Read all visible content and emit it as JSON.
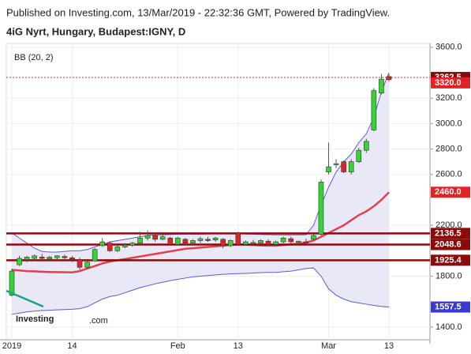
{
  "header": {
    "published": "Published on Investing.com, 13/Mar/2019 - 22:32:36 GMT, Powered by TradingView.",
    "symbol": "4iG Nyrt, Hungary, Budapest:IGNY, D"
  },
  "logo": {
    "brand": "Investing",
    "suffix": ".com"
  },
  "chart_data": {
    "type": "candlestick",
    "categories": [
      "2019",
      null,
      null,
      null,
      null,
      null,
      null,
      null,
      "14",
      null,
      null,
      null,
      null,
      null,
      null,
      null,
      null,
      null,
      null,
      null,
      null,
      null,
      "Feb",
      null,
      null,
      null,
      null,
      null,
      null,
      null,
      "13",
      null,
      null,
      null,
      null,
      null,
      null,
      null,
      null,
      null,
      null,
      null,
      "Mar",
      null,
      null,
      null,
      null,
      null,
      null,
      null,
      "13"
    ],
    "open": [
      1650,
      1890,
      1930,
      1940,
      1950,
      1935,
      1945,
      1955,
      1945,
      1930,
      1870,
      1920,
      2040,
      2060,
      2000,
      2030,
      2045,
      2060,
      2100,
      2120,
      2090,
      2100,
      2050,
      2090,
      2060,
      2080,
      2090,
      2085,
      2090,
      2040,
      2140,
      2050,
      2060,
      2060,
      2075,
      2050,
      2070,
      2095,
      2065,
      2070,
      2090,
      2130,
      2620,
      2680,
      2700,
      2620,
      2700,
      2790,
      2950,
      3240,
      3370
    ],
    "high": [
      1860,
      1960,
      1960,
      1970,
      1975,
      1960,
      1965,
      1970,
      1960,
      1945,
      1920,
      2020,
      2100,
      2075,
      2040,
      2060,
      2070,
      2150,
      2160,
      2140,
      2130,
      2110,
      2110,
      2100,
      2090,
      2110,
      2110,
      2110,
      2100,
      2090,
      2150,
      2080,
      2085,
      2090,
      2090,
      2080,
      2110,
      2110,
      2080,
      2095,
      2130,
      2560,
      2850,
      2720,
      2710,
      2720,
      2810,
      2880,
      3280,
      3390,
      3390
    ],
    "low": [
      1640,
      1880,
      1910,
      1920,
      1930,
      1920,
      1925,
      1935,
      1910,
      1850,
      1860,
      1915,
      2030,
      1990,
      1990,
      2020,
      2030,
      2050,
      2080,
      2070,
      2080,
      2040,
      2040,
      2050,
      2040,
      2060,
      2070,
      2070,
      2020,
      2030,
      2040,
      2040,
      2045,
      2050,
      2040,
      2040,
      2060,
      2060,
      2050,
      2055,
      2080,
      2120,
      2600,
      2650,
      2610,
      2600,
      2690,
      2770,
      2940,
      3230,
      3330
    ],
    "close": [
      1840,
      1940,
      1950,
      1960,
      1940,
      1950,
      1960,
      1945,
      1935,
      1870,
      1910,
      2010,
      2070,
      2000,
      2030,
      2045,
      2060,
      2100,
      2120,
      2090,
      2110,
      2050,
      2100,
      2060,
      2080,
      2095,
      2080,
      2100,
      2040,
      2080,
      2050,
      2070,
      2065,
      2080,
      2050,
      2070,
      2100,
      2070,
      2075,
      2060,
      2120,
      2540,
      2660,
      2685,
      2620,
      2700,
      2790,
      2860,
      3260,
      3350,
      3345
    ],
    "up_color": "#35d435",
    "down_color": "#e02424",
    "indicator": {
      "label": "BB (20, 2)",
      "band_color": "#5a5ad8",
      "fill_color": "#e4e4f4",
      "middle_color": "#e2404e",
      "upper": [
        2140,
        2100,
        2060,
        2020,
        1995,
        1990,
        1990,
        1995,
        2000,
        2000,
        2010,
        2030,
        2050,
        2070,
        2080,
        2090,
        2100,
        2110,
        2120,
        2125,
        2125,
        2128,
        2130,
        2130,
        2130,
        2130,
        2132,
        2134,
        2135,
        2135,
        2136,
        2132,
        2130,
        2128,
        2126,
        2125,
        2125,
        2125,
        2125,
        2126,
        2200,
        2360,
        2500,
        2620,
        2700,
        2760,
        2850,
        2920,
        3050,
        3250,
        3400
      ],
      "middle": [
        1850,
        1845,
        1840,
        1838,
        1835,
        1833,
        1832,
        1831,
        1830,
        1840,
        1860,
        1880,
        1900,
        1915,
        1925,
        1935,
        1945,
        1955,
        1965,
        1975,
        1985,
        1995,
        2005,
        2015,
        2020,
        2025,
        2030,
        2035,
        2040,
        2045,
        2050,
        2048,
        2045,
        2042,
        2040,
        2040,
        2045,
        2050,
        2055,
        2065,
        2080,
        2110,
        2140,
        2170,
        2200,
        2240,
        2280,
        2310,
        2350,
        2400,
        2460
      ],
      "lower": [
        1500,
        1510,
        1520,
        1525,
        1530,
        1532,
        1535,
        1538,
        1540,
        1545,
        1560,
        1590,
        1620,
        1640,
        1650,
        1670,
        1690,
        1710,
        1725,
        1740,
        1752,
        1765,
        1775,
        1785,
        1795,
        1800,
        1805,
        1810,
        1815,
        1818,
        1820,
        1822,
        1825,
        1828,
        1830,
        1830,
        1835,
        1840,
        1850,
        1860,
        1865,
        1800,
        1700,
        1650,
        1620,
        1600,
        1590,
        1580,
        1570,
        1562,
        1557.5
      ]
    },
    "levels": [
      2136.5,
      2048.6,
      1925.4
    ],
    "level_color": "#8b0a0a",
    "last_price": 3362.5,
    "price_tags": [
      {
        "value": 3362.5,
        "color": "#8b0a0a"
      },
      {
        "value": 3320,
        "label": "3320.0",
        "color": "#e02424"
      },
      {
        "value": 2460,
        "label": "2460.0",
        "color": "#e02424"
      },
      {
        "value": 2136.5,
        "color": "#8b0a0a"
      },
      {
        "value": 2048.6,
        "color": "#8b0a0a"
      },
      {
        "value": 1925.4,
        "color": "#8b0a0a"
      },
      {
        "value": 1557.5,
        "color": "#3a3ad0"
      }
    ],
    "ylim": [
      1300,
      3630
    ],
    "yticks": [
      {
        "value": 3600,
        "label": "3600.0"
      },
      {
        "value": 3200,
        "label": "3200.0"
      },
      {
        "value": 3000,
        "label": "3000.0"
      },
      {
        "value": 2800,
        "label": "2800.0"
      },
      {
        "value": 2600,
        "label": "2600.0"
      },
      {
        "value": 2200,
        "label": "2200.0"
      },
      {
        "value": 1800,
        "label": "1800.0"
      },
      {
        "value": 1400,
        "label": "1400.0"
      }
    ],
    "grid": true
  }
}
